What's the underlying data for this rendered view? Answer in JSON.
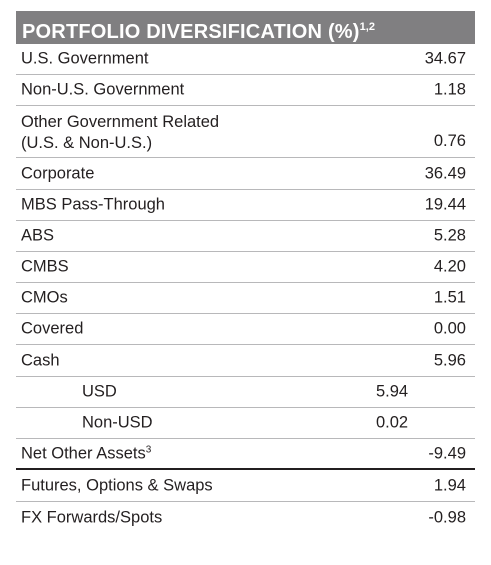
{
  "header": {
    "title": "PORTFOLIO DIVERSIFICATION (%)",
    "footnote": "1,2"
  },
  "rows": [
    {
      "label": "U.S. Government",
      "value": "34.67"
    },
    {
      "label": "Non-U.S. Government",
      "value": "1.18"
    },
    {
      "label_line1": "Other Government Related",
      "label_line2": "(U.S. & Non-U.S.)",
      "value": "0.76"
    },
    {
      "label": "Corporate",
      "value": "36.49"
    },
    {
      "label": "MBS Pass-Through",
      "value": "19.44"
    },
    {
      "label": "ABS",
      "value": "5.28"
    },
    {
      "label": "CMBS",
      "value": "4.20"
    },
    {
      "label": "CMOs",
      "value": "1.51"
    },
    {
      "label": "Covered",
      "value": "0.00"
    },
    {
      "label": "Cash",
      "value": "5.96"
    },
    {
      "label": "USD",
      "sub_value": "5.94"
    },
    {
      "label": "Non-USD",
      "sub_value": "0.02"
    },
    {
      "label": "Net Other Assets",
      "footnote": "3",
      "value": "-9.49"
    },
    {
      "label": "Futures, Options & Swaps",
      "value": "1.94"
    },
    {
      "label": "FX Forwards/Spots",
      "value": "-0.98"
    }
  ]
}
